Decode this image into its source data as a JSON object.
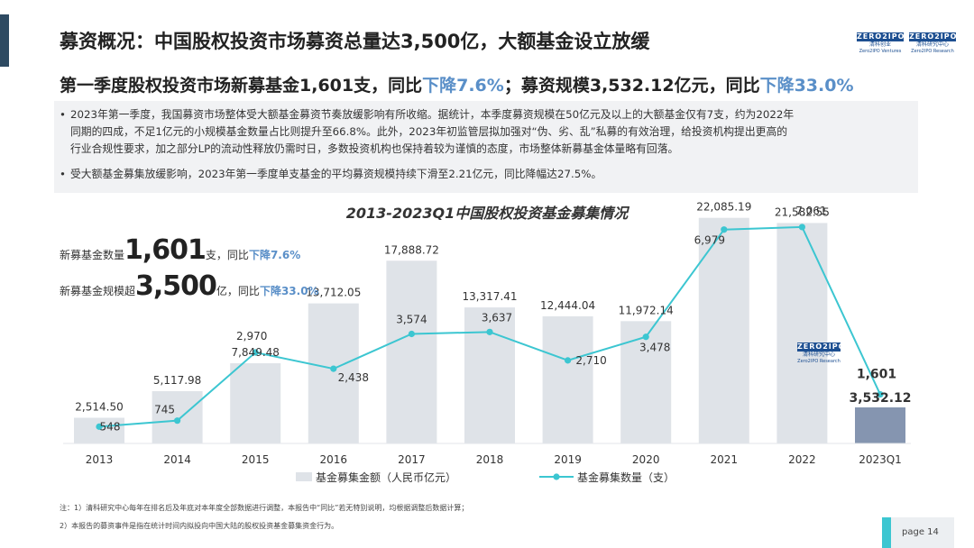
{
  "header": {
    "title": "募资概况：中国股权投资市场募资总量达3,500亿，大额基金设立放缓",
    "logos": [
      {
        "top": "ZERO2IPO",
        "cn": "清科创业",
        "en": "Zero2IPO Ventures"
      },
      {
        "top": "ZERO2IPO",
        "cn": "清科研究中心",
        "en": "Zero2IPO Research"
      }
    ]
  },
  "subtitle": {
    "part1": "第一季度股权投资市场新募基金1,601支，同比",
    "hl1": "下降7.6%",
    "part2": "；募资规模3,532.12亿元，同比",
    "hl2": "下降33.0%"
  },
  "bullets": [
    {
      "dot": "•",
      "lines": [
        "2023年第一季度，我国募资市场整体受大额基金募资节奏放缓影响有所收缩。据统计，本季度募资规模在50亿元及以上的大额基金仅有7支，约为2022年",
        "同期的四成，不足1亿元的小规模基金数量占比则提升至66.8%。此外，2023年初监管层拟加强对“伪、劣、乱”私募的有效治理，给投资机构提出更高的",
        "行业合规性要求，加之部分LP的流动性释放仍需时日，多数投资机构也保持着较为谨慎的态度，市场整体新募基金体量略有回落。"
      ]
    },
    {
      "dot": "•",
      "lines": [
        "受大额基金募集放缓影响，2023年第一季度单支基金的平均募资规模持续下滑至2.21亿元，同比降幅达27.5%。"
      ]
    }
  ],
  "kpis": {
    "count": {
      "prefix": "新募基金数量",
      "big": "1,601",
      "unit": "支，同比",
      "hl": "下降7.6%"
    },
    "amount": {
      "prefix": "新募基金规模超",
      "big": "3,500",
      "unit": "亿，同比",
      "hl": "下降33.0%"
    }
  },
  "chart_data": {
    "type": "bar",
    "title": "2013-2023Q1中国股权投资基金募集情况",
    "categories": [
      "2013",
      "2014",
      "2015",
      "2016",
      "2017",
      "2018",
      "2019",
      "2020",
      "2021",
      "2022",
      "2023Q1"
    ],
    "series": [
      {
        "name": "基金募集金额（人民币亿元）",
        "type": "bar",
        "values": [
          2514.5,
          5117.98,
          7849.48,
          13712.05,
          17888.72,
          13317.41,
          12444.04,
          11972.14,
          22085.19,
          21582.55,
          3532.12
        ],
        "labels": [
          "2,514.50",
          "5,117.98",
          "7,849.48",
          "13,712.05",
          "17,888.72",
          "13,317.41",
          "12,444.04",
          "11,972.14",
          "22,085.19",
          "21,582.55",
          "3,532.12"
        ],
        "color": "#dfe3e8",
        "last_color": "#8595b0"
      },
      {
        "name": "基金募集数量（支）",
        "type": "line",
        "values": [
          548,
          745,
          2970,
          2438,
          3574,
          3637,
          2710,
          3478,
          6979,
          7061,
          1601
        ],
        "labels": [
          "548",
          "745",
          "2,970",
          "2,438",
          "3,574",
          "3,637",
          "2,710",
          "3,478",
          "6,979",
          "7,061",
          "1,601"
        ],
        "color": "#3cc6d1"
      }
    ],
    "ylim_bar": [
      0,
      24000
    ],
    "ylim_line": [
      0,
      8000
    ],
    "grid": false,
    "legend_position": "bottom"
  },
  "watermark": {
    "top": "ZERO2IPO",
    "cn": "清科研究中心",
    "en": "Zero2IPO Research"
  },
  "notes": [
    "注：1）清科研究中心每年在排名后及年底对本年度全部数据进行调整，本报告中“同比”若无特别说明，均根据调整后数据计算；",
    "2）本报告的募资事件是指在统计时间内拟投向中国大陆的股权投资基金募集资金行为。"
  ],
  "page": {
    "label": "page 14"
  },
  "colors": {
    "accent": "#3cc6d1",
    "highlight": "#5a8fc8",
    "dark": "#2e4a62"
  }
}
